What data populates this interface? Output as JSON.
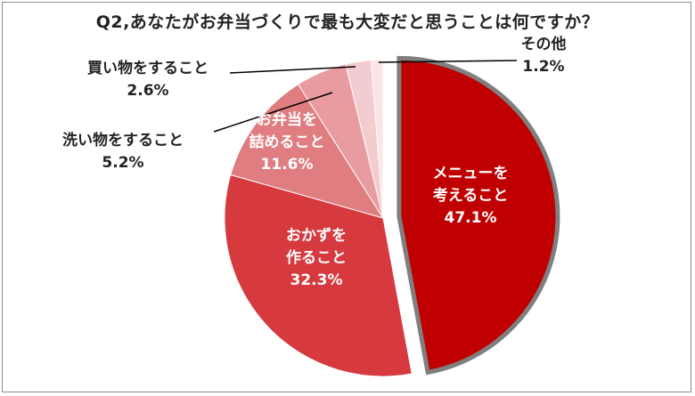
{
  "chart_data": {
    "type": "pie",
    "title": "Q2,あなたがお弁当づくりで最も大変だと思うことは何ですか？",
    "slices": [
      {
        "label_lines": [
          "メニューを",
          "考えること"
        ],
        "value": 47.1,
        "value_text": "47.1%",
        "color": "#c00000",
        "exploded": true,
        "label_color": "#ffffff"
      },
      {
        "label_lines": [
          "おかずを",
          "作ること"
        ],
        "value": 32.3,
        "value_text": "32.3%",
        "color": "#d63a3f",
        "exploded": false,
        "label_color": "#ffffff"
      },
      {
        "label_lines": [
          "お弁当を",
          "詰めること"
        ],
        "value": 11.6,
        "value_text": "11.6%",
        "color": "#e07d80",
        "exploded": false,
        "label_color": "#ffffff"
      },
      {
        "label_lines": [
          "洗い物をすること"
        ],
        "value": 5.2,
        "value_text": "5.2%",
        "color": "#e89ca0",
        "exploded": false,
        "label_color": "#222222"
      },
      {
        "label_lines": [
          "買い物をすること"
        ],
        "value": 2.6,
        "value_text": "2.6%",
        "color": "#f2cccf",
        "exploded": false,
        "label_color": "#222222"
      },
      {
        "label_lines": [
          "その他"
        ],
        "value": 1.2,
        "value_text": "1.2%",
        "color": "#fae5e6",
        "exploded": false,
        "label_color": "#222222"
      }
    ],
    "start_angle_deg": 0,
    "direction": "clockwise",
    "legend": "none"
  }
}
